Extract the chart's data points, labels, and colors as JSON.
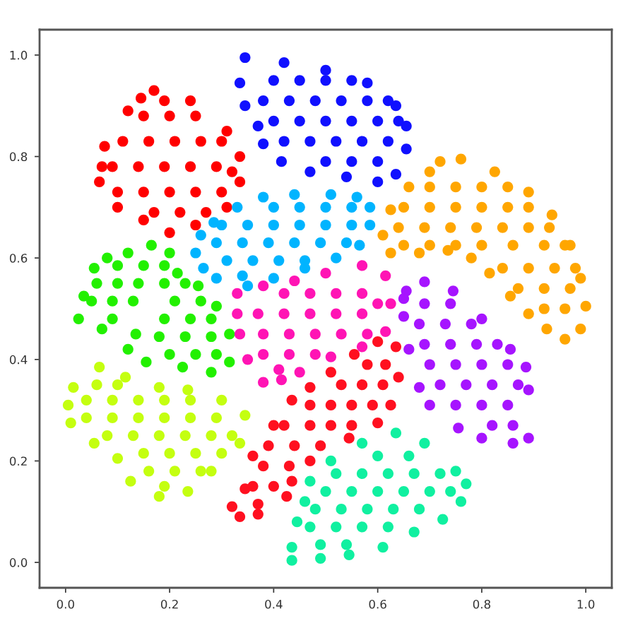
{
  "chart_data": {
    "type": "scatter",
    "marker": "circle",
    "xlim": [
      -0.05,
      1.05
    ],
    "ylim": [
      -0.05,
      1.05
    ],
    "xticks": [
      {
        "value": 0,
        "label": "0.0"
      },
      0.2,
      0.4,
      0.6,
      0.8,
      {
        "value": 1,
        "label": "1.0"
      }
    ],
    "yticks": [
      {
        "value": 0,
        "label": "0.0"
      },
      0.2,
      0.4,
      0.6,
      0.8,
      {
        "value": 1,
        "label": "1.0"
      }
    ],
    "series": [
      {
        "color": "#ff0000",
        "x": [
          0.17,
          0.24,
          0.31,
          0.335,
          0.335,
          0.31,
          0.25,
          0.2,
          0.15,
          0.1,
          0.065,
          0.075,
          0.12,
          0.145,
          0.15,
          0.2,
          0.25,
          0.11,
          0.16,
          0.21,
          0.26,
          0.3,
          0.09,
          0.14,
          0.19,
          0.24,
          0.29,
          0.1,
          0.15,
          0.2,
          0.25,
          0.3,
          0.17,
          0.22,
          0.27,
          0.19,
          0.07,
          0.32
        ],
        "values": [
          0.93,
          0.91,
          0.85,
          0.8,
          0.75,
          0.7,
          0.665,
          0.65,
          0.675,
          0.7,
          0.75,
          0.82,
          0.89,
          0.915,
          0.88,
          0.88,
          0.88,
          0.83,
          0.83,
          0.83,
          0.83,
          0.83,
          0.78,
          0.78,
          0.78,
          0.78,
          0.78,
          0.73,
          0.73,
          0.73,
          0.73,
          0.73,
          0.69,
          0.69,
          0.69,
          0.91,
          0.78,
          0.77
        ]
      },
      {
        "color": "#1010ff",
        "x": [
          0.345,
          0.42,
          0.5,
          0.58,
          0.635,
          0.655,
          0.655,
          0.635,
          0.6,
          0.54,
          0.47,
          0.415,
          0.38,
          0.37,
          0.345,
          0.335,
          0.4,
          0.45,
          0.5,
          0.55,
          0.38,
          0.43,
          0.48,
          0.53,
          0.58,
          0.62,
          0.4,
          0.45,
          0.5,
          0.55,
          0.6,
          0.64,
          0.42,
          0.47,
          0.52,
          0.57,
          0.62,
          0.5,
          0.55,
          0.6
        ],
        "values": [
          0.995,
          0.985,
          0.97,
          0.945,
          0.9,
          0.86,
          0.815,
          0.765,
          0.75,
          0.76,
          0.77,
          0.79,
          0.825,
          0.86,
          0.9,
          0.945,
          0.95,
          0.95,
          0.95,
          0.95,
          0.91,
          0.91,
          0.91,
          0.91,
          0.91,
          0.91,
          0.87,
          0.87,
          0.87,
          0.87,
          0.87,
          0.87,
          0.83,
          0.83,
          0.83,
          0.83,
          0.83,
          0.79,
          0.79,
          0.79
        ]
      },
      {
        "color": "#ffa600",
        "x": [
          0.72,
          0.76,
          0.825,
          0.89,
          0.935,
          0.97,
          0.99,
          1.0,
          0.99,
          0.96,
          0.925,
          0.89,
          0.855,
          0.815,
          0.78,
          0.735,
          0.68,
          0.625,
          0.61,
          0.625,
          0.66,
          0.7,
          0.7,
          0.75,
          0.8,
          0.85,
          0.65,
          0.7,
          0.75,
          0.8,
          0.85,
          0.89,
          0.64,
          0.69,
          0.74,
          0.79,
          0.84,
          0.89,
          0.93,
          0.65,
          0.7,
          0.75,
          0.8,
          0.86,
          0.92,
          0.96,
          0.84,
          0.89,
          0.94,
          0.98,
          0.87,
          0.92,
          0.97,
          0.92,
          0.96
        ],
        "values": [
          0.79,
          0.795,
          0.77,
          0.73,
          0.685,
          0.625,
          0.56,
          0.505,
          0.46,
          0.44,
          0.46,
          0.49,
          0.525,
          0.57,
          0.6,
          0.615,
          0.61,
          0.61,
          0.645,
          0.695,
          0.74,
          0.77,
          0.74,
          0.74,
          0.74,
          0.74,
          0.7,
          0.7,
          0.7,
          0.7,
          0.7,
          0.7,
          0.66,
          0.66,
          0.66,
          0.66,
          0.66,
          0.66,
          0.66,
          0.625,
          0.625,
          0.625,
          0.625,
          0.625,
          0.625,
          0.625,
          0.58,
          0.58,
          0.58,
          0.58,
          0.54,
          0.54,
          0.54,
          0.5,
          0.5
        ]
      },
      {
        "color": "#00b4ff",
        "x": [
          0.25,
          0.26,
          0.285,
          0.33,
          0.38,
          0.44,
          0.51,
          0.56,
          0.585,
          0.585,
          0.565,
          0.52,
          0.46,
          0.4,
          0.35,
          0.29,
          0.265,
          0.4,
          0.45,
          0.5,
          0.55,
          0.3,
          0.35,
          0.4,
          0.45,
          0.5,
          0.55,
          0.29,
          0.34,
          0.39,
          0.44,
          0.49,
          0.54,
          0.31,
          0.36,
          0.41,
          0.46,
          0.34
        ],
        "values": [
          0.61,
          0.645,
          0.67,
          0.7,
          0.72,
          0.725,
          0.725,
          0.72,
          0.7,
          0.665,
          0.625,
          0.6,
          0.58,
          0.56,
          0.545,
          0.56,
          0.58,
          0.7,
          0.7,
          0.7,
          0.7,
          0.665,
          0.665,
          0.665,
          0.665,
          0.665,
          0.665,
          0.63,
          0.63,
          0.63,
          0.63,
          0.63,
          0.63,
          0.595,
          0.595,
          0.595,
          0.595,
          0.565
        ]
      },
      {
        "color": "#22f000",
        "x": [
          0.12,
          0.165,
          0.2,
          0.215,
          0.255,
          0.29,
          0.315,
          0.315,
          0.28,
          0.225,
          0.155,
          0.12,
          0.135,
          0.07,
          0.025,
          0.035,
          0.055,
          0.08,
          0.1,
          0.15,
          0.19,
          0.06,
          0.1,
          0.14,
          0.19,
          0.23,
          0.05,
          0.09,
          0.13,
          0.21,
          0.26,
          0.09,
          0.19,
          0.24,
          0.28,
          0.18,
          0.23,
          0.28,
          0.2,
          0.25,
          0.29
        ],
        "values": [
          0.61,
          0.625,
          0.61,
          0.57,
          0.545,
          0.505,
          0.45,
          0.395,
          0.375,
          0.385,
          0.395,
          0.42,
          0.45,
          0.46,
          0.48,
          0.525,
          0.58,
          0.6,
          0.585,
          0.585,
          0.585,
          0.55,
          0.55,
          0.55,
          0.55,
          0.55,
          0.515,
          0.515,
          0.515,
          0.515,
          0.515,
          0.48,
          0.48,
          0.48,
          0.48,
          0.445,
          0.445,
          0.445,
          0.41,
          0.41,
          0.41
        ]
      },
      {
        "color": "#ff14b4",
        "x": [
          0.33,
          0.38,
          0.44,
          0.5,
          0.57,
          0.615,
          0.625,
          0.615,
          0.57,
          0.51,
          0.45,
          0.415,
          0.38,
          0.35,
          0.335,
          0.33,
          0.42,
          0.47,
          0.52,
          0.57,
          0.37,
          0.42,
          0.47,
          0.52,
          0.57,
          0.38,
          0.43,
          0.48,
          0.53,
          0.58,
          0.38,
          0.43,
          0.48,
          0.41,
          0.6
        ],
        "values": [
          0.53,
          0.545,
          0.555,
          0.57,
          0.585,
          0.565,
          0.51,
          0.455,
          0.425,
          0.405,
          0.375,
          0.36,
          0.355,
          0.4,
          0.45,
          0.49,
          0.53,
          0.53,
          0.53,
          0.53,
          0.49,
          0.49,
          0.49,
          0.49,
          0.49,
          0.45,
          0.45,
          0.45,
          0.45,
          0.45,
          0.41,
          0.41,
          0.41,
          0.38,
          0.51
        ]
      },
      {
        "color": "#a614ff",
        "x": [
          0.655,
          0.69,
          0.745,
          0.8,
          0.855,
          0.885,
          0.89,
          0.89,
          0.86,
          0.8,
          0.755,
          0.7,
          0.68,
          0.66,
          0.65,
          0.65,
          0.69,
          0.74,
          0.68,
          0.73,
          0.78,
          0.69,
          0.74,
          0.79,
          0.83,
          0.7,
          0.75,
          0.8,
          0.85,
          0.72,
          0.77,
          0.82,
          0.87,
          0.75,
          0.8,
          0.85,
          0.82,
          0.86
        ],
        "values": [
          0.535,
          0.553,
          0.535,
          0.48,
          0.42,
          0.385,
          0.34,
          0.245,
          0.235,
          0.245,
          0.265,
          0.31,
          0.345,
          0.42,
          0.485,
          0.52,
          0.51,
          0.51,
          0.47,
          0.47,
          0.47,
          0.43,
          0.43,
          0.43,
          0.43,
          0.39,
          0.39,
          0.39,
          0.39,
          0.35,
          0.35,
          0.35,
          0.35,
          0.31,
          0.31,
          0.31,
          0.27,
          0.27
        ]
      },
      {
        "color": "#c4ff10",
        "x": [
          0.065,
          0.115,
          0.18,
          0.235,
          0.3,
          0.345,
          0.335,
          0.28,
          0.235,
          0.18,
          0.125,
          0.1,
          0.055,
          0.01,
          0.005,
          0.015,
          0.06,
          0.1,
          0.04,
          0.09,
          0.14,
          0.19,
          0.24,
          0.04,
          0.09,
          0.14,
          0.19,
          0.24,
          0.29,
          0.08,
          0.13,
          0.18,
          0.23,
          0.28,
          0.32,
          0.15,
          0.2,
          0.25,
          0.3,
          0.16,
          0.21,
          0.26,
          0.19
        ],
        "values": [
          0.385,
          0.365,
          0.345,
          0.34,
          0.32,
          0.29,
          0.235,
          0.18,
          0.14,
          0.13,
          0.16,
          0.205,
          0.235,
          0.275,
          0.31,
          0.345,
          0.35,
          0.35,
          0.32,
          0.32,
          0.32,
          0.32,
          0.32,
          0.285,
          0.285,
          0.285,
          0.285,
          0.285,
          0.285,
          0.25,
          0.25,
          0.25,
          0.25,
          0.25,
          0.25,
          0.215,
          0.215,
          0.215,
          0.215,
          0.18,
          0.18,
          0.18,
          0.15
        ]
      },
      {
        "color": "#ff1020",
        "x": [
          0.32,
          0.345,
          0.36,
          0.4,
          0.435,
          0.47,
          0.51,
          0.555,
          0.6,
          0.635,
          0.64,
          0.625,
          0.6,
          0.545,
          0.47,
          0.435,
          0.425,
          0.37,
          0.335,
          0.58,
          0.615,
          0.53,
          0.57,
          0.61,
          0.47,
          0.51,
          0.55,
          0.59,
          0.42,
          0.47,
          0.51,
          0.55,
          0.39,
          0.44,
          0.49,
          0.38,
          0.43,
          0.36,
          0.4,
          0.37
        ],
        "values": [
          0.11,
          0.145,
          0.21,
          0.27,
          0.32,
          0.345,
          0.375,
          0.41,
          0.435,
          0.425,
          0.365,
          0.31,
          0.275,
          0.245,
          0.2,
          0.16,
          0.13,
          0.095,
          0.09,
          0.39,
          0.39,
          0.35,
          0.35,
          0.35,
          0.31,
          0.31,
          0.31,
          0.31,
          0.27,
          0.27,
          0.27,
          0.27,
          0.23,
          0.23,
          0.23,
          0.19,
          0.19,
          0.15,
          0.15,
          0.115
        ]
      },
      {
        "color": "#10f0a0",
        "x": [
          0.47,
          0.51,
          0.57,
          0.635,
          0.69,
          0.75,
          0.77,
          0.76,
          0.725,
          0.67,
          0.61,
          0.545,
          0.49,
          0.435,
          0.435,
          0.445,
          0.46,
          0.6,
          0.66,
          0.52,
          0.57,
          0.62,
          0.67,
          0.72,
          0.5,
          0.55,
          0.6,
          0.65,
          0.7,
          0.74,
          0.48,
          0.53,
          0.58,
          0.63,
          0.68,
          0.47,
          0.52,
          0.57,
          0.62,
          0.49,
          0.54
        ],
        "values": [
          0.16,
          0.2,
          0.235,
          0.255,
          0.235,
          0.18,
          0.155,
          0.12,
          0.085,
          0.06,
          0.03,
          0.015,
          0.008,
          0.004,
          0.03,
          0.08,
          0.12,
          0.21,
          0.21,
          0.175,
          0.175,
          0.175,
          0.175,
          0.175,
          0.14,
          0.14,
          0.14,
          0.14,
          0.14,
          0.14,
          0.105,
          0.105,
          0.105,
          0.105,
          0.105,
          0.07,
          0.07,
          0.07,
          0.07,
          0.035,
          0.035
        ]
      }
    ]
  }
}
